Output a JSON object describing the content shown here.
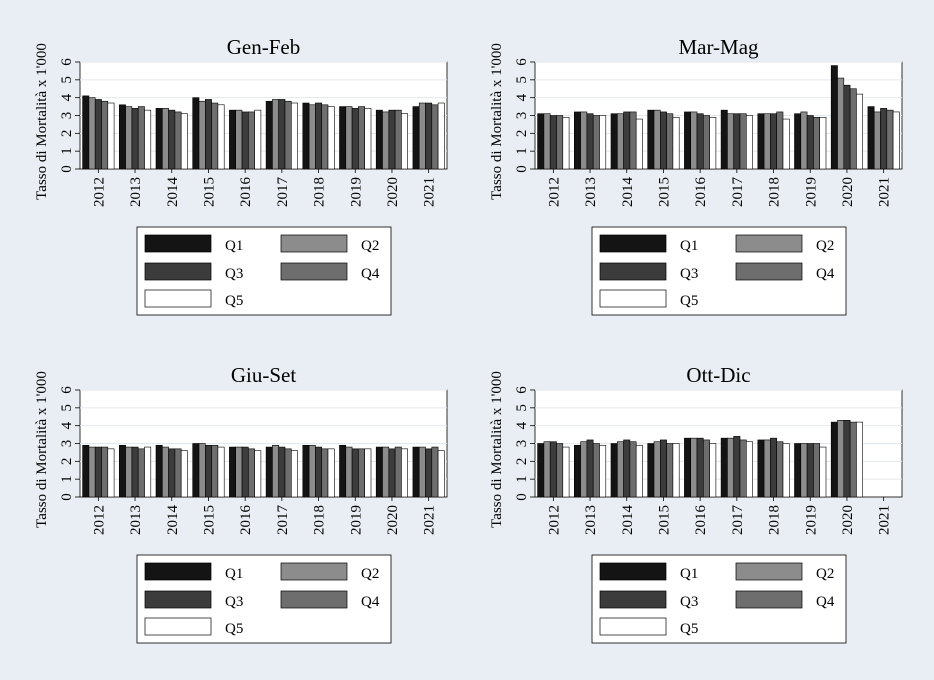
{
  "ylabel": "Tasso di Mortalità x 1'000",
  "ylim": [
    0,
    6
  ],
  "yticks": [
    "0",
    "1",
    "2",
    "3",
    "4",
    "5",
    "6"
  ],
  "categories": [
    "2012",
    "2013",
    "2014",
    "2015",
    "2016",
    "2017",
    "2018",
    "2019",
    "2020",
    "2021"
  ],
  "legend": [
    {
      "name": "Q1",
      "color": "#141414"
    },
    {
      "name": "Q2",
      "color": "#8c8c8c"
    },
    {
      "name": "Q3",
      "color": "#3c3c3c"
    },
    {
      "name": "Q4",
      "color": "#6e6e6e"
    },
    {
      "name": "Q5",
      "color": "#ffffff"
    }
  ],
  "chart_data": [
    {
      "type": "bar",
      "title": "Gen-Feb",
      "ylabel": "Tasso di Mortalità x 1'000",
      "ylim": [
        0,
        6
      ],
      "categories": [
        "2012",
        "2013",
        "2014",
        "2015",
        "2016",
        "2017",
        "2018",
        "2019",
        "2020",
        "2021"
      ],
      "series": [
        {
          "name": "Q1",
          "values": [
            4.1,
            3.6,
            3.4,
            4.0,
            3.3,
            3.8,
            3.7,
            3.5,
            3.3,
            3.5
          ]
        },
        {
          "name": "Q2",
          "values": [
            4.0,
            3.5,
            3.4,
            3.8,
            3.3,
            3.9,
            3.6,
            3.5,
            3.2,
            3.7
          ]
        },
        {
          "name": "Q3",
          "values": [
            3.9,
            3.4,
            3.3,
            3.9,
            3.2,
            3.9,
            3.7,
            3.4,
            3.3,
            3.7
          ]
        },
        {
          "name": "Q4",
          "values": [
            3.8,
            3.5,
            3.2,
            3.7,
            3.2,
            3.8,
            3.6,
            3.5,
            3.3,
            3.6
          ]
        },
        {
          "name": "Q5",
          "values": [
            3.7,
            3.3,
            3.1,
            3.6,
            3.3,
            3.7,
            3.5,
            3.4,
            3.1,
            3.7
          ]
        }
      ]
    },
    {
      "type": "bar",
      "title": "Mar-Mag",
      "ylabel": "Tasso di Mortalità x 1'000",
      "ylim": [
        0,
        6
      ],
      "categories": [
        "2012",
        "2013",
        "2014",
        "2015",
        "2016",
        "2017",
        "2018",
        "2019",
        "2020",
        "2021"
      ],
      "series": [
        {
          "name": "Q1",
          "values": [
            3.1,
            3.2,
            3.1,
            3.3,
            3.2,
            3.3,
            3.1,
            3.1,
            5.8,
            3.5
          ]
        },
        {
          "name": "Q2",
          "values": [
            3.1,
            3.2,
            3.1,
            3.3,
            3.2,
            3.1,
            3.1,
            3.2,
            5.1,
            3.2
          ]
        },
        {
          "name": "Q3",
          "values": [
            3.0,
            3.1,
            3.2,
            3.2,
            3.1,
            3.1,
            3.1,
            3.0,
            4.7,
            3.4
          ]
        },
        {
          "name": "Q4",
          "values": [
            3.0,
            3.0,
            3.2,
            3.1,
            3.0,
            3.1,
            3.2,
            2.9,
            4.5,
            3.3
          ]
        },
        {
          "name": "Q5",
          "values": [
            2.9,
            3.0,
            2.8,
            2.9,
            2.9,
            3.0,
            2.8,
            2.9,
            4.2,
            3.2
          ]
        }
      ]
    },
    {
      "type": "bar",
      "title": "Giu-Set",
      "ylabel": "Tasso di Mortalità x 1'000",
      "ylim": [
        0,
        6
      ],
      "categories": [
        "2012",
        "2013",
        "2014",
        "2015",
        "2016",
        "2017",
        "2018",
        "2019",
        "2020",
        "2021"
      ],
      "series": [
        {
          "name": "Q1",
          "values": [
            2.9,
            2.9,
            2.9,
            3.0,
            2.8,
            2.8,
            2.9,
            2.9,
            2.8,
            2.8
          ]
        },
        {
          "name": "Q2",
          "values": [
            2.8,
            2.8,
            2.8,
            3.0,
            2.8,
            2.9,
            2.9,
            2.8,
            2.8,
            2.8
          ]
        },
        {
          "name": "Q3",
          "values": [
            2.8,
            2.8,
            2.7,
            2.9,
            2.8,
            2.8,
            2.8,
            2.7,
            2.7,
            2.7
          ]
        },
        {
          "name": "Q4",
          "values": [
            2.8,
            2.7,
            2.7,
            2.9,
            2.7,
            2.7,
            2.7,
            2.7,
            2.8,
            2.8
          ]
        },
        {
          "name": "Q5",
          "values": [
            2.7,
            2.8,
            2.6,
            2.8,
            2.6,
            2.6,
            2.7,
            2.7,
            2.7,
            2.6
          ]
        }
      ]
    },
    {
      "type": "bar",
      "title": "Ott-Dic",
      "ylabel": "Tasso di Mortalità x 1'000",
      "ylim": [
        0,
        6
      ],
      "categories": [
        "2012",
        "2013",
        "2014",
        "2015",
        "2016",
        "2017",
        "2018",
        "2019",
        "2020",
        "2021"
      ],
      "series": [
        {
          "name": "Q1",
          "values": [
            3.0,
            2.9,
            3.0,
            3.0,
            3.3,
            3.3,
            3.2,
            3.0,
            4.2,
            null
          ]
        },
        {
          "name": "Q2",
          "values": [
            3.1,
            3.1,
            3.1,
            3.1,
            3.3,
            3.3,
            3.2,
            3.0,
            4.3,
            null
          ]
        },
        {
          "name": "Q3",
          "values": [
            3.1,
            3.2,
            3.2,
            3.2,
            3.3,
            3.4,
            3.3,
            3.0,
            4.3,
            null
          ]
        },
        {
          "name": "Q4",
          "values": [
            3.0,
            3.0,
            3.1,
            3.0,
            3.2,
            3.2,
            3.1,
            3.0,
            4.2,
            null
          ]
        },
        {
          "name": "Q5",
          "values": [
            2.8,
            2.9,
            2.9,
            3.0,
            3.0,
            3.1,
            3.0,
            2.8,
            4.2,
            null
          ]
        }
      ]
    }
  ]
}
